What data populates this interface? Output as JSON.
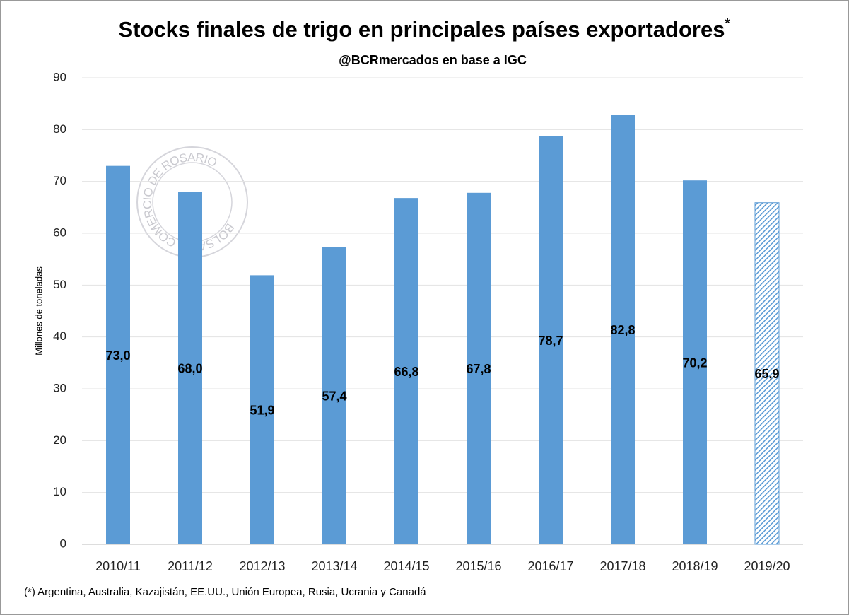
{
  "chart_data": {
    "type": "bar",
    "title": "Stocks finales de trigo en principales países exportadores",
    "title_mark": "*",
    "subtitle": "@BCRmercados  en base a IGC",
    "y_label": "Millones de toneladas",
    "footnote": "(*) Argentina, Australia, Kazajistán, EE.UU., Unión Europea, Rusia, Ucrania y Canadá",
    "watermark": "BOLSA DE COMERCIO DE ROSARIO",
    "categories": [
      "2010/11",
      "2011/12",
      "2012/13",
      "2013/14",
      "2014/15",
      "2015/16",
      "2016/17",
      "2017/18",
      "2018/19",
      "2019/20"
    ],
    "values": [
      73.0,
      68.0,
      51.9,
      57.4,
      66.8,
      67.8,
      78.7,
      82.8,
      70.2,
      65.9
    ],
    "value_labels": [
      "73,0",
      "68,0",
      "51,9",
      "57,4",
      "66,8",
      "67,8",
      "78,7",
      "82,8",
      "70,2",
      "65,9"
    ],
    "hatched": [
      false,
      false,
      false,
      false,
      false,
      false,
      false,
      false,
      false,
      true
    ],
    "color": "#5b9bd5",
    "ylim": [
      0,
      90
    ],
    "yticks": [
      0,
      10,
      20,
      30,
      40,
      50,
      60,
      70,
      80,
      90
    ],
    "grid": true
  }
}
